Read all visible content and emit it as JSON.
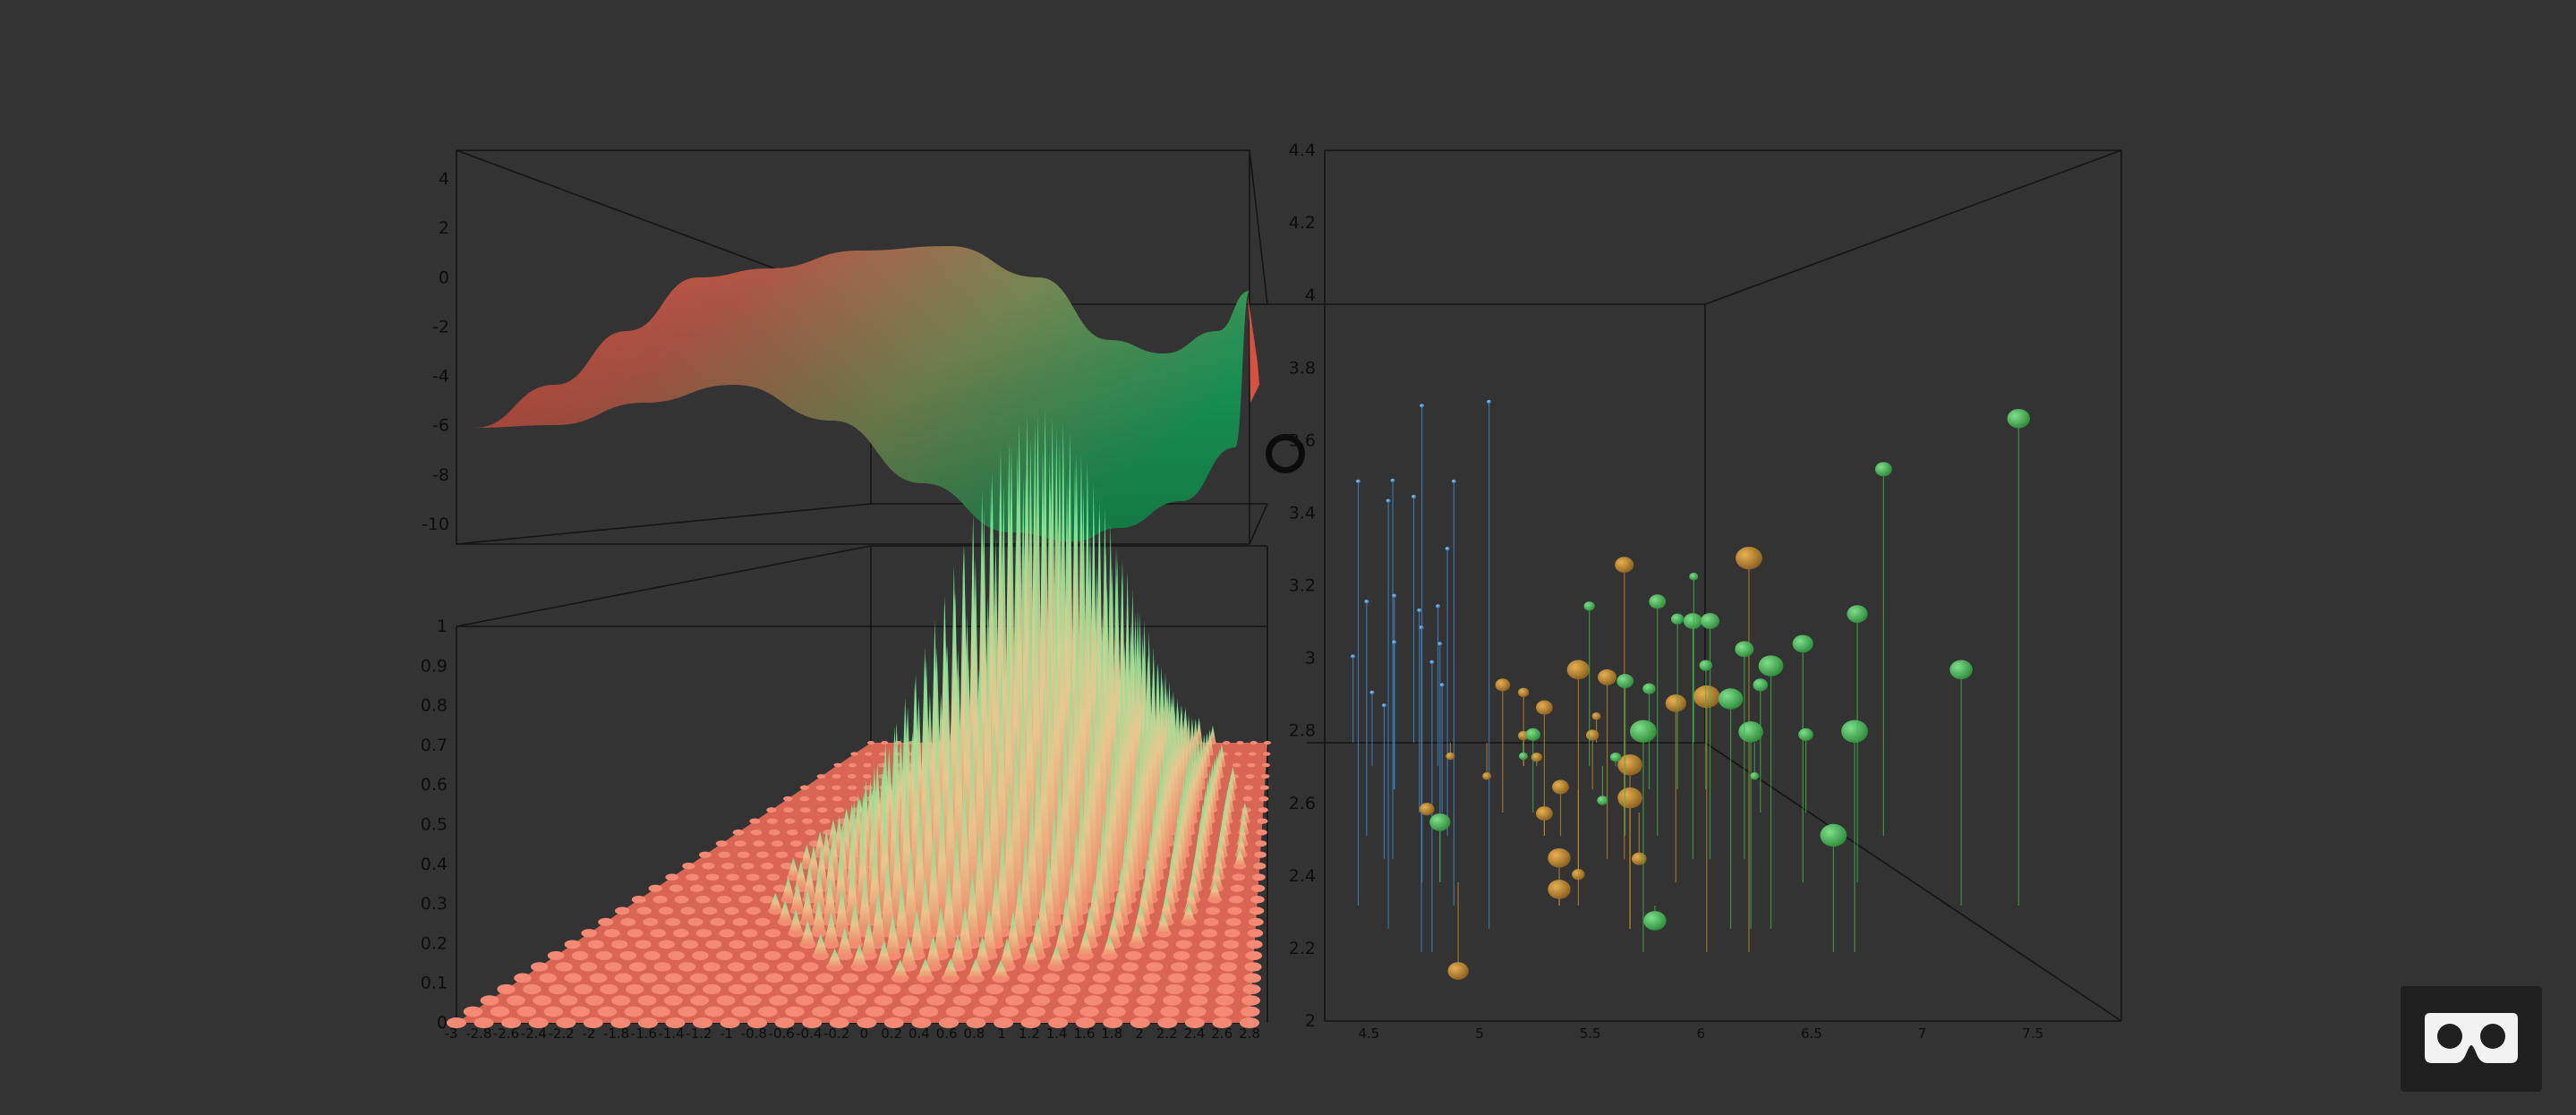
{
  "colors": {
    "background": "#333333",
    "surface_low": "#e8453e",
    "surface_high": "#1aa05c",
    "bars_low": "#e8705a",
    "bars_high": "#5cf59a",
    "scatter_blue": "#3d8fd6",
    "scatter_orange": "#c98a2a",
    "scatter_green": "#3fb84a"
  },
  "icons": {
    "vr_button": "vr-headset-icon",
    "cursor": "gaze-cursor-ring-icon"
  },
  "chart_data": [
    {
      "type": "surface",
      "series": [
        {
          "values": [
            -6.1,
            -4.0,
            -2.0,
            -1.6,
            -2.0,
            -3.5,
            -6.0,
            -9.0,
            -10.0,
            -9.5,
            -6.0,
            -3.0
          ]
        }
      ],
      "y_ticks": [
        "4",
        "2",
        "0",
        "-2",
        "-4",
        "-6",
        "-8",
        "-10"
      ],
      "ylim": [
        -10,
        4
      ],
      "grid": false
    },
    {
      "type": "bar",
      "shape": "gaussian",
      "peak": 1.0,
      "floor": 0.0,
      "y_ticks": [
        "1",
        "0.9",
        "0.8",
        "0.7",
        "0.6",
        "0.5",
        "0.4",
        "0.3",
        "0.2",
        "0.1",
        "0"
      ],
      "x_ticks": [
        "-3",
        "-2.8",
        "-2.6",
        "-2.4",
        "-2.2",
        "-2",
        "-1.8",
        "-1.6",
        "-1.4",
        "-1.2",
        "-1",
        "-0.8",
        "-0.6",
        "-0.4",
        "-0.2",
        "0",
        "0.2",
        "0.4",
        "0.6",
        "0.8",
        "1",
        "1.2",
        "1.4",
        "1.6",
        "1.8",
        "2",
        "2.2",
        "2.4",
        "2.6",
        "2.8"
      ],
      "ylim": [
        0,
        1
      ],
      "grid": false
    },
    {
      "type": "scatter",
      "x_ticks": [
        "4.5",
        "5",
        "5.5",
        "6",
        "6.5",
        "7",
        "7.5"
      ],
      "y_ticks": [
        "4.4",
        "4.2",
        "4",
        "3.8",
        "3.6",
        "3.4",
        "3.2",
        "3",
        "2.8",
        "2.6",
        "2.4",
        "2.2",
        "2"
      ],
      "xlim": [
        4.3,
        7.9
      ],
      "ylim": [
        2,
        4.4
      ],
      "grid": false,
      "series": [
        {
          "color": "#3d8fd6",
          "points": [
            [
              4.4,
              3.2
            ],
            [
              4.45,
              3.6
            ],
            [
              4.5,
              3.3
            ],
            [
              4.55,
              3.0
            ],
            [
              4.6,
              3.5
            ],
            [
              4.65,
              3.7
            ],
            [
              4.7,
              3.4
            ],
            [
              4.75,
              3.1
            ],
            [
              4.8,
              3.9
            ],
            [
              4.85,
              3.3
            ],
            [
              4.9,
              4.0
            ],
            [
              4.95,
              3.6
            ],
            [
              5.0,
              3.5
            ],
            [
              5.05,
              3.4
            ],
            [
              5.1,
              3.8
            ],
            [
              4.6,
              2.9
            ],
            [
              4.7,
              3.2
            ],
            [
              4.8,
              3.0
            ],
            [
              4.9,
              3.1
            ],
            [
              5.0,
              3.0
            ]
          ]
        },
        {
          "color": "#c98a2a",
          "points": [
            [
              4.9,
              2.5
            ],
            [
              5.2,
              2.7
            ],
            [
              5.5,
              2.4
            ],
            [
              5.6,
              2.9
            ],
            [
              5.7,
              3.0
            ],
            [
              5.8,
              2.7
            ],
            [
              5.9,
              3.0
            ],
            [
              6.0,
              2.2
            ],
            [
              6.1,
              2.9
            ],
            [
              6.2,
              2.9
            ],
            [
              6.3,
              2.3
            ],
            [
              6.4,
              2.9
            ],
            [
              5.5,
              2.3
            ],
            [
              5.6,
              2.5
            ],
            [
              5.7,
              2.8
            ],
            [
              5.8,
              2.6
            ],
            [
              6.0,
              3.4
            ],
            [
              6.1,
              2.8
            ],
            [
              6.3,
              3.3
            ],
            [
              5.0,
              2.0
            ],
            [
              5.4,
              3.0
            ],
            [
              5.5,
              2.6
            ],
            [
              5.6,
              3.0
            ],
            [
              5.7,
              2.6
            ],
            [
              5.8,
              2.7
            ]
          ]
        },
        {
          "color": "#3fb84a",
          "points": [
            [
              4.9,
              2.5
            ],
            [
              5.6,
              2.8
            ],
            [
              5.8,
              2.7
            ],
            [
              6.0,
              2.2
            ],
            [
              6.1,
              3.0
            ],
            [
              6.2,
              3.4
            ],
            [
              6.3,
              2.9
            ],
            [
              6.4,
              3.2
            ],
            [
              6.5,
              3.0
            ],
            [
              6.7,
              2.5
            ],
            [
              6.9,
              3.1
            ],
            [
              7.1,
              3.0
            ],
            [
              7.2,
              3.6
            ],
            [
              7.6,
              3.0
            ],
            [
              7.7,
              3.8
            ],
            [
              6.3,
              2.5
            ],
            [
              6.4,
              2.8
            ],
            [
              6.5,
              3.2
            ],
            [
              6.7,
              3.3
            ],
            [
              6.8,
              2.8
            ],
            [
              7.2,
              3.2
            ],
            [
              7.4,
              2.8
            ],
            [
              7.7,
              2.6
            ],
            [
              7.9,
              3.8
            ],
            [
              6.3,
              3.3
            ],
            [
              6.4,
              2.7
            ],
            [
              6.5,
              3.0
            ],
            [
              6.7,
              3.1
            ],
            [
              6.9,
              3.1
            ],
            [
              5.8,
              2.8
            ]
          ]
        }
      ]
    }
  ]
}
